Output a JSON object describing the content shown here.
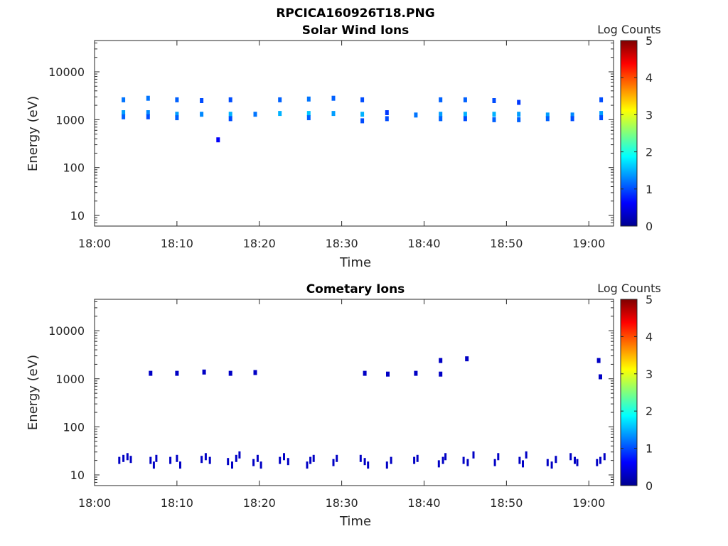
{
  "figure_title": "RPCICA160926T18.PNG",
  "colorbar_colors": [
    "#00008f",
    "#0000ff",
    "#007fff",
    "#00ffff",
    "#7fff7f",
    "#ffff00",
    "#ff7f00",
    "#ff0000",
    "#7f0000"
  ],
  "chart_data": [
    {
      "type": "heatmap",
      "title": "Solar Wind Ions",
      "xlabel": "Time",
      "ylabel": "Energy (eV)",
      "yscale": "log",
      "xlim": [
        "18:00",
        "19:03"
      ],
      "ylim": [
        6,
        45000
      ],
      "xticks": [
        "18:00",
        "18:10",
        "18:20",
        "18:30",
        "18:40",
        "18:50",
        "19:00"
      ],
      "yticks": [
        "10",
        "100",
        "1000",
        "10000"
      ],
      "colorbar": {
        "label": "Log Counts",
        "range": [
          0,
          5
        ],
        "ticks": [
          "0",
          "1",
          "2",
          "3",
          "4",
          "5"
        ]
      },
      "points": [
        {
          "t": "18:03.5",
          "e": 2600,
          "v": 1.2
        },
        {
          "t": "18:03.5",
          "e": 1400,
          "v": 1.4
        },
        {
          "t": "18:03.5",
          "e": 1150,
          "v": 1.1
        },
        {
          "t": "18:06.5",
          "e": 2800,
          "v": 1.2
        },
        {
          "t": "18:06.5",
          "e": 1400,
          "v": 1.3
        },
        {
          "t": "18:06.5",
          "e": 1150,
          "v": 1.0
        },
        {
          "t": "18:10.0",
          "e": 2600,
          "v": 1.1
        },
        {
          "t": "18:10.0",
          "e": 1300,
          "v": 1.4
        },
        {
          "t": "18:10.0",
          "e": 1100,
          "v": 1.1
        },
        {
          "t": "18:13.0",
          "e": 2500,
          "v": 1.0
        },
        {
          "t": "18:13.0",
          "e": 1300,
          "v": 1.3
        },
        {
          "t": "18:15.0",
          "e": 380,
          "v": 0.6
        },
        {
          "t": "18:16.5",
          "e": 2600,
          "v": 1.0
        },
        {
          "t": "18:16.5",
          "e": 1300,
          "v": 1.5
        },
        {
          "t": "18:16.5",
          "e": 1050,
          "v": 1.0
        },
        {
          "t": "18:19.5",
          "e": 1300,
          "v": 1.2
        },
        {
          "t": "18:22.5",
          "e": 2600,
          "v": 1.1
        },
        {
          "t": "18:22.5",
          "e": 1350,
          "v": 1.5
        },
        {
          "t": "18:26.0",
          "e": 2700,
          "v": 1.2
        },
        {
          "t": "18:26.0",
          "e": 1350,
          "v": 1.6
        },
        {
          "t": "18:26.0",
          "e": 1100,
          "v": 1.1
        },
        {
          "t": "18:29.0",
          "e": 2800,
          "v": 1.1
        },
        {
          "t": "18:29.0",
          "e": 1350,
          "v": 1.4
        },
        {
          "t": "18:32.5",
          "e": 2600,
          "v": 1.0
        },
        {
          "t": "18:32.5",
          "e": 1300,
          "v": 1.5
        },
        {
          "t": "18:32.5",
          "e": 950,
          "v": 1.0
        },
        {
          "t": "18:35.5",
          "e": 1400,
          "v": 0.9
        },
        {
          "t": "18:35.5",
          "e": 1050,
          "v": 1.0
        },
        {
          "t": "18:39.0",
          "e": 1250,
          "v": 1.2
        },
        {
          "t": "18:42.0",
          "e": 2600,
          "v": 1.1
        },
        {
          "t": "18:42.0",
          "e": 1300,
          "v": 1.4
        },
        {
          "t": "18:42.0",
          "e": 1050,
          "v": 1.1
        },
        {
          "t": "18:45.0",
          "e": 2600,
          "v": 1.1
        },
        {
          "t": "18:45.0",
          "e": 1300,
          "v": 1.5
        },
        {
          "t": "18:45.0",
          "e": 1050,
          "v": 1.0
        },
        {
          "t": "18:48.5",
          "e": 2500,
          "v": 1.0
        },
        {
          "t": "18:48.5",
          "e": 1300,
          "v": 1.5
        },
        {
          "t": "18:48.5",
          "e": 1000,
          "v": 1.1
        },
        {
          "t": "18:51.5",
          "e": 2300,
          "v": 0.9
        },
        {
          "t": "18:51.5",
          "e": 1300,
          "v": 1.4
        },
        {
          "t": "18:51.5",
          "e": 1000,
          "v": 1.1
        },
        {
          "t": "18:55.0",
          "e": 1250,
          "v": 1.4
        },
        {
          "t": "18:55.0",
          "e": 1050,
          "v": 1.1
        },
        {
          "t": "18:58.0",
          "e": 1250,
          "v": 1.3
        },
        {
          "t": "18:58.0",
          "e": 1050,
          "v": 1.0
        },
        {
          "t": "19:01.5",
          "e": 2600,
          "v": 1.0
        },
        {
          "t": "19:01.5",
          "e": 1350,
          "v": 1.4
        },
        {
          "t": "19:01.5",
          "e": 1100,
          "v": 1.0
        }
      ]
    },
    {
      "type": "heatmap",
      "title": "Cometary Ions",
      "xlabel": "Time",
      "ylabel": "Energy (eV)",
      "yscale": "log",
      "xlim": [
        "18:00",
        "19:03"
      ],
      "ylim": [
        6,
        45000
      ],
      "xticks": [
        "18:00",
        "18:10",
        "18:20",
        "18:30",
        "18:40",
        "18:50",
        "19:00"
      ],
      "yticks": [
        "10",
        "100",
        "1000",
        "10000"
      ],
      "colorbar": {
        "label": "Log Counts",
        "range": [
          0,
          5
        ],
        "ticks": [
          "0",
          "1",
          "2",
          "3",
          "4",
          "5"
        ]
      },
      "points": [
        {
          "t": "18:06.8",
          "e": 1300,
          "v": 0.3
        },
        {
          "t": "18:10.0",
          "e": 1300,
          "v": 0.3
        },
        {
          "t": "18:13.3",
          "e": 1380,
          "v": 0.3
        },
        {
          "t": "18:16.5",
          "e": 1300,
          "v": 0.3
        },
        {
          "t": "18:19.5",
          "e": 1350,
          "v": 0.3
        },
        {
          "t": "18:32.8",
          "e": 1300,
          "v": 0.3
        },
        {
          "t": "18:35.6",
          "e": 1250,
          "v": 0.3
        },
        {
          "t": "18:39.0",
          "e": 1300,
          "v": 0.3
        },
        {
          "t": "18:42.0",
          "e": 2400,
          "v": 0.3
        },
        {
          "t": "18:42.0",
          "e": 1250,
          "v": 0.3
        },
        {
          "t": "18:45.2",
          "e": 2600,
          "v": 0.3
        },
        {
          "t": "19:01.2",
          "e": 2400,
          "v": 0.3
        },
        {
          "t": "19:01.4",
          "e": 1100,
          "v": 0.3
        },
        {
          "t": "18:03.0",
          "e": 20,
          "v": 0.3
        },
        {
          "t": "18:03.5",
          "e": 22,
          "v": 0.3
        },
        {
          "t": "18:04.0",
          "e": 24,
          "v": 0.3
        },
        {
          "t": "18:04.4",
          "e": 21,
          "v": 0.3
        },
        {
          "t": "18:06.8",
          "e": 20,
          "v": 0.3
        },
        {
          "t": "18:07.2",
          "e": 16,
          "v": 0.3
        },
        {
          "t": "18:07.5",
          "e": 22,
          "v": 0.3
        },
        {
          "t": "18:09.2",
          "e": 20,
          "v": 0.3
        },
        {
          "t": "18:10.0",
          "e": 22,
          "v": 0.3
        },
        {
          "t": "18:10.4",
          "e": 16,
          "v": 0.3
        },
        {
          "t": "18:13.0",
          "e": 21,
          "v": 0.3
        },
        {
          "t": "18:13.5",
          "e": 24,
          "v": 0.3
        },
        {
          "t": "18:14.0",
          "e": 20,
          "v": 0.3
        },
        {
          "t": "18:16.2",
          "e": 19,
          "v": 0.3
        },
        {
          "t": "18:16.7",
          "e": 16,
          "v": 0.3
        },
        {
          "t": "18:17.2",
          "e": 22,
          "v": 0.3
        },
        {
          "t": "18:17.6",
          "e": 26,
          "v": 0.3
        },
        {
          "t": "18:19.3",
          "e": 18,
          "v": 0.3
        },
        {
          "t": "18:19.8",
          "e": 22,
          "v": 0.3
        },
        {
          "t": "18:20.2",
          "e": 16,
          "v": 0.3
        },
        {
          "t": "18:22.5",
          "e": 20,
          "v": 0.3
        },
        {
          "t": "18:23.0",
          "e": 24,
          "v": 0.3
        },
        {
          "t": "18:23.5",
          "e": 19,
          "v": 0.3
        },
        {
          "t": "18:25.8",
          "e": 16,
          "v": 0.3
        },
        {
          "t": "18:26.2",
          "e": 20,
          "v": 0.3
        },
        {
          "t": "18:26.6",
          "e": 22,
          "v": 0.3
        },
        {
          "t": "18:29.0",
          "e": 18,
          "v": 0.3
        },
        {
          "t": "18:29.4",
          "e": 22,
          "v": 0.3
        },
        {
          "t": "18:32.3",
          "e": 22,
          "v": 0.3
        },
        {
          "t": "18:32.8",
          "e": 19,
          "v": 0.3
        },
        {
          "t": "18:33.2",
          "e": 16,
          "v": 0.3
        },
        {
          "t": "18:35.5",
          "e": 16,
          "v": 0.3
        },
        {
          "t": "18:36.0",
          "e": 20,
          "v": 0.3
        },
        {
          "t": "18:38.8",
          "e": 20,
          "v": 0.3
        },
        {
          "t": "18:39.2",
          "e": 22,
          "v": 0.3
        },
        {
          "t": "18:41.8",
          "e": 17,
          "v": 0.3
        },
        {
          "t": "18:42.3",
          "e": 20,
          "v": 0.3
        },
        {
          "t": "18:42.6",
          "e": 24,
          "v": 0.3
        },
        {
          "t": "18:44.8",
          "e": 20,
          "v": 0.3
        },
        {
          "t": "18:45.3",
          "e": 18,
          "v": 0.3
        },
        {
          "t": "18:46.0",
          "e": 26,
          "v": 0.3
        },
        {
          "t": "18:48.6",
          "e": 18,
          "v": 0.3
        },
        {
          "t": "18:49.0",
          "e": 24,
          "v": 0.3
        },
        {
          "t": "18:51.6",
          "e": 20,
          "v": 0.3
        },
        {
          "t": "18:52.0",
          "e": 17,
          "v": 0.3
        },
        {
          "t": "18:52.4",
          "e": 26,
          "v": 0.3
        },
        {
          "t": "18:55.0",
          "e": 18,
          "v": 0.3
        },
        {
          "t": "18:55.5",
          "e": 16,
          "v": 0.3
        },
        {
          "t": "18:56.0",
          "e": 21,
          "v": 0.3
        },
        {
          "t": "18:57.8",
          "e": 24,
          "v": 0.3
        },
        {
          "t": "18:58.3",
          "e": 20,
          "v": 0.3
        },
        {
          "t": "18:58.6",
          "e": 18,
          "v": 0.3
        },
        {
          "t": "19:01.0",
          "e": 18,
          "v": 0.3
        },
        {
          "t": "19:01.4",
          "e": 20,
          "v": 0.3
        },
        {
          "t": "19:01.9",
          "e": 24,
          "v": 0.3
        }
      ]
    }
  ]
}
